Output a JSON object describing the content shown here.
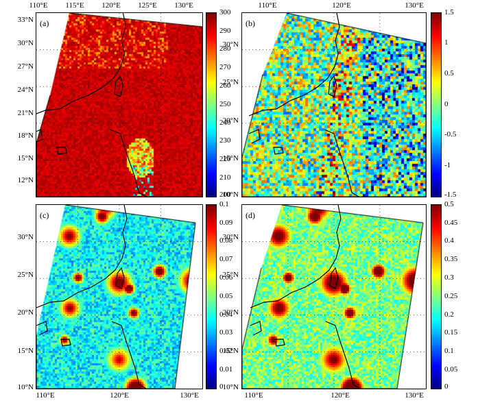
{
  "panels": [
    {
      "tag": "(a)",
      "top_axis": [
        "110°E",
        "115°E",
        "120°E",
        "125°E",
        "130°E"
      ],
      "bottom_axis": [],
      "lat_labels": [
        "33°N",
        "30°N",
        "27°N",
        "24°N",
        "21°N",
        "18°N",
        "15°N",
        "12°N"
      ],
      "colorbar": [
        "300",
        "290",
        "280",
        "270",
        "260",
        "250",
        "240",
        "230",
        "220",
        "210",
        "200"
      ],
      "field": "temperature"
    },
    {
      "tag": "(b)",
      "top_axis": [
        "110°E",
        "120°E",
        "130°E"
      ],
      "bottom_axis": [],
      "lat_labels": [
        "30°N",
        "25°N",
        "20°N",
        "15°N",
        "10°N"
      ],
      "colorbar": [
        "1.5",
        "1",
        "0.5",
        "0",
        "-0.5",
        "-1",
        "-1.5"
      ],
      "field": "anomaly"
    },
    {
      "tag": "(c)",
      "top_axis": [],
      "bottom_axis": [
        "110°E",
        "120°E",
        "130°E"
      ],
      "lat_labels": [
        "30°N",
        "25°N",
        "20°N",
        "15°N",
        "10°N"
      ],
      "colorbar": [
        "0.1",
        "0.09",
        "0.08",
        "0.07",
        "0.06",
        "0.05",
        "0.04",
        "0.03",
        "0.02",
        "0.01",
        "0"
      ],
      "field": "cloud"
    },
    {
      "tag": "(d)",
      "top_axis": [],
      "bottom_axis": [
        "110°E",
        "120°E",
        "130°E"
      ],
      "lat_labels": [
        "30°N",
        "25°N",
        "20°N",
        "15°N",
        "10°N"
      ],
      "colorbar": [
        "0.5",
        "0.45",
        "0.4",
        "0.35",
        "0.3",
        "0.25",
        "0.2",
        "0.15",
        "0.1",
        "0.05",
        "0"
      ],
      "field": "cloud"
    }
  ],
  "colormap": "jet"
}
